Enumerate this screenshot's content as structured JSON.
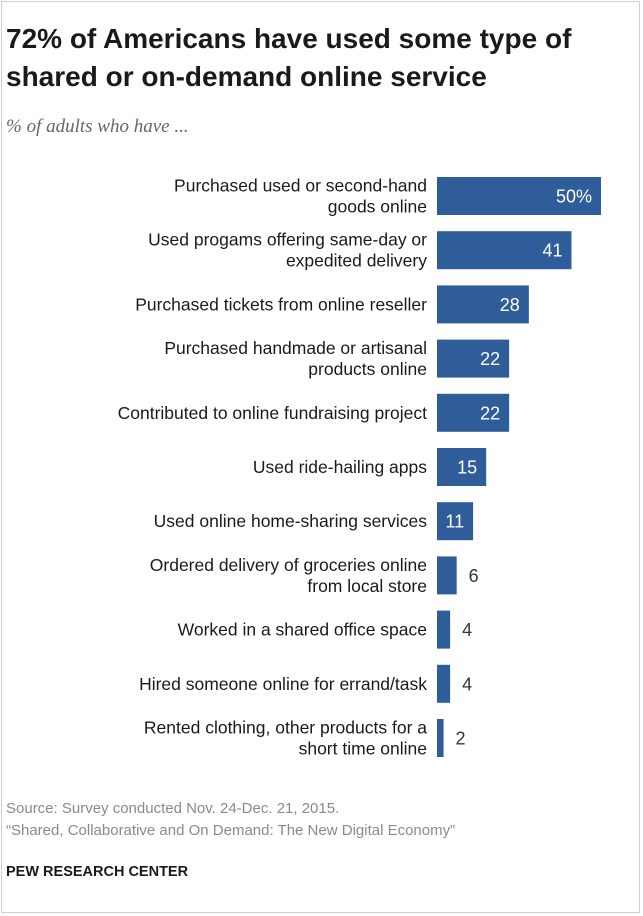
{
  "title": "72% of Americans have used some type of shared or on-demand  online service",
  "subtitle": "% of adults who have ...",
  "source_line1": "Source: Survey conducted Nov. 24-Dec. 21, 2015.",
  "source_line2": "“Shared, Collaborative and On Demand: The New Digital Economy”",
  "brand": "PEW RESEARCH CENTER",
  "bar_color": "#2e5d9a",
  "chart_data": {
    "type": "bar",
    "orientation": "horizontal",
    "categories": [
      [
        "Purchased used or second-hand",
        "goods online"
      ],
      [
        "Used progams offering same-day or",
        "expedited delivery"
      ],
      [
        "Purchased tickets from online reseller"
      ],
      [
        "Purchased handmade or artisanal",
        "products online"
      ],
      [
        "Contributed to online fundraising project"
      ],
      [
        "Used ride-hailing apps"
      ],
      [
        "Used online home-sharing services"
      ],
      [
        "Ordered delivery of groceries online",
        "from local store"
      ],
      [
        "Worked in a shared office space"
      ],
      [
        "Hired someone online for errand/task"
      ],
      [
        "Rented clothing, other products for a",
        "short time online"
      ]
    ],
    "values": [
      50,
      41,
      28,
      22,
      22,
      15,
      11,
      6,
      4,
      4,
      2
    ],
    "value_labels": [
      "50%",
      "41",
      "28",
      "22",
      "22",
      "15",
      "11",
      "6",
      "4",
      "4",
      "2"
    ],
    "xlim": [
      0,
      50
    ],
    "grid": false,
    "legend": "none"
  }
}
